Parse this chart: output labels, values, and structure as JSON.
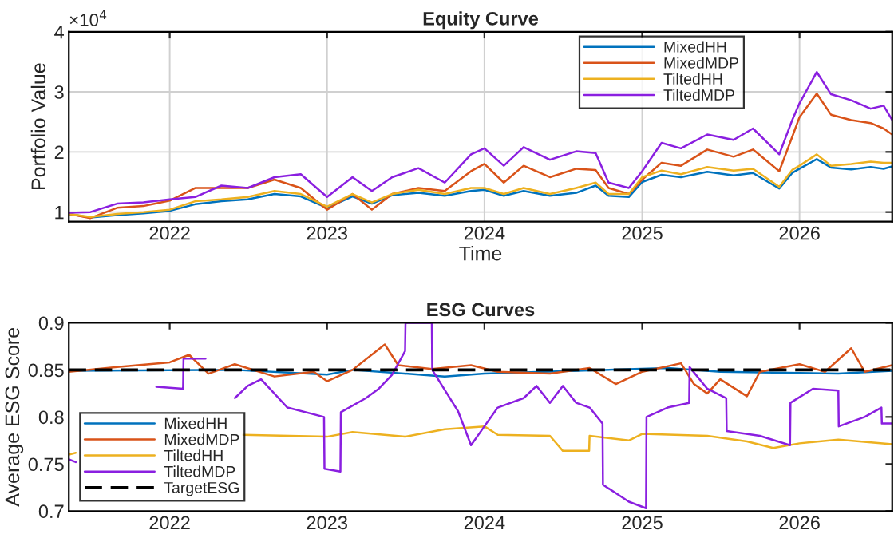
{
  "chart_data": [
    {
      "type": "line",
      "title": "Equity Curve",
      "xlabel": "Time",
      "ylabel": "Portfolio Value",
      "annotations": [
        "×10$^{4}$"
      ],
      "xlim": [
        "2021-05-12",
        "2026-08-04"
      ],
      "xticks": [
        "2022",
        "2023",
        "2024",
        "2025",
        "2026"
      ],
      "ylim": [
        0.84,
        4
      ],
      "yticks": [
        1,
        2,
        3,
        4
      ],
      "grid": true,
      "legend": "top",
      "x": [
        "2021-05-12",
        "2021-07-01",
        "2021-09-01",
        "2021-11-01",
        "2022-01-01",
        "2022-03-01",
        "2022-05-01",
        "2022-07-01",
        "2022-09-01",
        "2022-11-01",
        "2023-01-01",
        "2023-03-01",
        "2023-04-15",
        "2023-06-01",
        "2023-08-01",
        "2023-10-01",
        "2023-12-01",
        "2024-01-01",
        "2024-02-15",
        "2024-04-01",
        "2024-06-01",
        "2024-08-01",
        "2024-09-15",
        "2024-10-15",
        "2024-12-01",
        "2025-01-01",
        "2025-02-15",
        "2025-04-01",
        "2025-06-01",
        "2025-08-01",
        "2025-09-15",
        "2025-11-15",
        "2025-12-15",
        "2026-01-01",
        "2026-02-10",
        "2026-03-15",
        "2026-05-01",
        "2026-06-15",
        "2026-07-15",
        "2026-08-04"
      ],
      "series": [
        {
          "name": "MixedHH",
          "color": "#0072bd",
          "values": [
            0.97,
            0.91,
            0.95,
            0.98,
            1.02,
            1.13,
            1.18,
            1.21,
            1.3,
            1.26,
            1.07,
            1.26,
            1.14,
            1.28,
            1.32,
            1.27,
            1.35,
            1.37,
            1.27,
            1.35,
            1.27,
            1.32,
            1.44,
            1.27,
            1.25,
            1.5,
            1.62,
            1.58,
            1.67,
            1.61,
            1.65,
            1.39,
            1.65,
            1.72,
            1.88,
            1.74,
            1.71,
            1.75,
            1.72,
            1.76
          ]
        },
        {
          "name": "MixedMDP",
          "color": "#d95319",
          "values": [
            0.97,
            0.9,
            1.07,
            1.1,
            1.19,
            1.4,
            1.4,
            1.4,
            1.54,
            1.4,
            1.04,
            1.3,
            1.04,
            1.3,
            1.4,
            1.35,
            1.68,
            1.8,
            1.49,
            1.77,
            1.58,
            1.72,
            1.7,
            1.4,
            1.3,
            1.54,
            1.82,
            1.77,
            2.04,
            1.92,
            2.04,
            1.68,
            2.25,
            2.58,
            2.97,
            2.62,
            2.53,
            2.48,
            2.39,
            2.29
          ]
        },
        {
          "name": "TiltedHH",
          "color": "#edb120",
          "values": [
            0.97,
            0.92,
            0.97,
            1.0,
            1.04,
            1.18,
            1.21,
            1.25,
            1.35,
            1.3,
            1.09,
            1.3,
            1.16,
            1.3,
            1.37,
            1.3,
            1.4,
            1.4,
            1.3,
            1.4,
            1.3,
            1.4,
            1.49,
            1.3,
            1.3,
            1.58,
            1.69,
            1.63,
            1.75,
            1.69,
            1.72,
            1.42,
            1.7,
            1.77,
            1.96,
            1.77,
            1.8,
            1.84,
            1.82,
            1.82
          ]
        },
        {
          "name": "TiltedMDP",
          "color": "#8a1fe0",
          "values": [
            0.99,
            1.0,
            1.14,
            1.16,
            1.21,
            1.25,
            1.44,
            1.4,
            1.58,
            1.63,
            1.25,
            1.58,
            1.35,
            1.58,
            1.73,
            1.49,
            1.96,
            2.06,
            1.77,
            2.08,
            1.87,
            2.01,
            1.98,
            1.49,
            1.4,
            1.68,
            2.15,
            2.06,
            2.29,
            2.2,
            2.39,
            1.96,
            2.53,
            2.81,
            3.33,
            2.96,
            2.86,
            2.72,
            2.77,
            2.53
          ]
        }
      ]
    },
    {
      "type": "line",
      "title": "ESG Curves",
      "ylabel": "Average ESG Score",
      "xlim": [
        "2021-05-12",
        "2026-08-04"
      ],
      "xticks": [
        "2022",
        "2023",
        "2024",
        "2025",
        "2026"
      ],
      "ylim": [
        0.7,
        0.9
      ],
      "yticks": [
        0.7,
        0.75,
        0.8,
        0.85,
        0.9
      ],
      "grid": false,
      "legend": "bottom left",
      "series": [
        {
          "name": "MixedHH",
          "color": "#0072bd",
          "x": [
            "2021-05-12",
            "2022-06-01",
            "2023-01-01",
            "2023-03-01",
            "2023-10-01",
            "2024-01-01",
            "2025-03-01",
            "2025-07-01",
            "2026-04-01",
            "2026-08-04"
          ],
          "values": [
            0.849,
            0.85,
            0.845,
            0.85,
            0.843,
            0.846,
            0.852,
            0.848,
            0.846,
            0.849
          ]
        },
        {
          "name": "MixedMDP",
          "color": "#d95319",
          "x": [
            "2021-05-12",
            "2021-09-01",
            "2022-01-01",
            "2022-02-15",
            "2022-04-01",
            "2022-06-01",
            "2022-09-01",
            "2022-12-01",
            "2023-01-01",
            "2023-03-01",
            "2023-05-15",
            "2023-06-15",
            "2023-09-01",
            "2023-12-01",
            "2024-02-01",
            "2024-06-01",
            "2024-09-01",
            "2024-11-01",
            "2025-01-01",
            "2025-04-01",
            "2025-05-01",
            "2025-06-01",
            "2025-07-01",
            "2025-09-01",
            "2025-10-01",
            "2026-01-01",
            "2026-03-01",
            "2026-05-01",
            "2026-06-01",
            "2026-08-04"
          ],
          "values": [
            0.848,
            0.853,
            0.858,
            0.866,
            0.846,
            0.856,
            0.843,
            0.848,
            0.838,
            0.85,
            0.877,
            0.855,
            0.851,
            0.855,
            0.848,
            0.846,
            0.852,
            0.835,
            0.848,
            0.857,
            0.835,
            0.825,
            0.84,
            0.822,
            0.848,
            0.856,
            0.848,
            0.873,
            0.848,
            0.855
          ]
        },
        {
          "name": "TiltedHH",
          "color": "#edb120",
          "x": [
            "2021-05-12",
            "2021-05-28",
            "2021-07-01",
            "2022-06-20",
            "2023-01-01",
            "2023-03-01",
            "2023-07-01",
            "2023-10-01",
            "2024-01-01",
            "2024-02-01",
            "2024-06-01",
            "2024-07-01",
            "2024-08-31",
            "2024-09-01",
            "2024-12-01",
            "2025-01-01",
            "2025-06-01",
            "2025-09-01",
            "2025-11-01",
            "2026-01-01",
            "2026-04-01",
            "2026-08-04"
          ],
          "values": [
            0.76,
            0.762,
            null,
            0.781,
            0.779,
            0.784,
            0.779,
            0.787,
            0.79,
            0.781,
            0.78,
            0.764,
            0.764,
            0.78,
            0.775,
            0.782,
            0.78,
            0.774,
            0.767,
            0.772,
            0.776,
            0.771
          ]
        },
        {
          "name": "TiltedMDP",
          "color": "#8a1fe0",
          "x": [
            "2021-05-12",
            "2021-05-28",
            "2021-07-01",
            "2021-12-01",
            "2022-02-01",
            "2022-02-02",
            "2022-03-25",
            "2022-03-26",
            "2022-05-01",
            "2022-06-01",
            "2022-07-01",
            "2022-08-01",
            "2022-10-01",
            "2022-12-25",
            "2022-12-26",
            "2023-02-01",
            "2023-02-02",
            "2023-04-01",
            "2023-05-01",
            "2023-06-01",
            "2023-07-01",
            "2023-07-02",
            "2023-09-01",
            "2023-09-02",
            "2023-11-01",
            "2023-12-01",
            "2024-01-01",
            "2024-02-01",
            "2024-04-01",
            "2024-05-01",
            "2024-06-01",
            "2024-07-01",
            "2024-08-01",
            "2024-09-01",
            "2024-10-01",
            "2024-10-02",
            "2024-12-01",
            "2025-01-10",
            "2025-01-11",
            "2025-03-01",
            "2025-04-20",
            "2025-04-21",
            "2025-06-01",
            "2025-07-15",
            "2025-07-16",
            "2025-10-01",
            "2025-12-10",
            "2025-12-11",
            "2026-02-01",
            "2026-04-01",
            "2026-04-02",
            "2026-06-01",
            "2026-07-10",
            "2026-07-11",
            "2026-08-04"
          ],
          "values": [
            0.755,
            0.752,
            null,
            0.832,
            0.83,
            0.862,
            0.862,
            null,
            null,
            0.82,
            0.833,
            0.84,
            0.81,
            0.8,
            0.745,
            0.742,
            0.805,
            0.82,
            0.83,
            0.845,
            0.87,
            0.9,
            0.9,
            0.85,
            0.806,
            0.77,
            0.79,
            0.81,
            0.82,
            0.833,
            0.815,
            0.833,
            0.815,
            0.81,
            0.793,
            0.728,
            0.71,
            0.703,
            0.8,
            0.81,
            0.815,
            0.853,
            0.83,
            0.82,
            0.785,
            0.78,
            0.77,
            0.815,
            0.83,
            0.828,
            0.79,
            0.8,
            0.81,
            0.793,
            0.793
          ]
        },
        {
          "name": "TargetESG",
          "color": "#000000",
          "line_style": "dashed",
          "x": [
            "2021-05-12",
            "2026-08-04"
          ],
          "values": [
            0.85,
            0.85
          ]
        }
      ]
    }
  ]
}
